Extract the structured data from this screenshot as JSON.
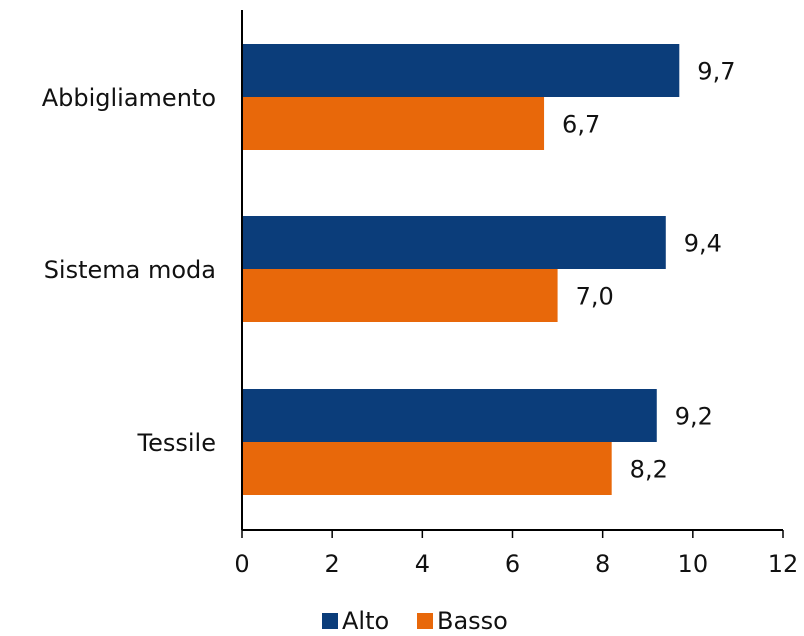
{
  "chart_data": {
    "type": "bar",
    "orientation": "horizontal",
    "categories": [
      "Abbigliamento",
      "Sistema moda",
      "Tessile"
    ],
    "series": [
      {
        "name": "Alto",
        "values": [
          9.7,
          9.4,
          9.2
        ],
        "labels": [
          "9,7",
          "9,4",
          "9,2"
        ],
        "color": "#0b3d7a"
      },
      {
        "name": "Basso",
        "values": [
          6.7,
          7.0,
          8.2
        ],
        "labels": [
          "6,7",
          "7,0",
          "8,2"
        ],
        "color": "#e8680a"
      }
    ],
    "xlim": [
      0,
      12
    ],
    "xticks": [
      0,
      2,
      4,
      6,
      8,
      10,
      12
    ],
    "xtick_labels": [
      "0",
      "2",
      "4",
      "6",
      "8",
      "10",
      "12"
    ],
    "title": "",
    "xlabel": "",
    "ylabel": "",
    "grid": false,
    "legend_position": "bottom"
  }
}
